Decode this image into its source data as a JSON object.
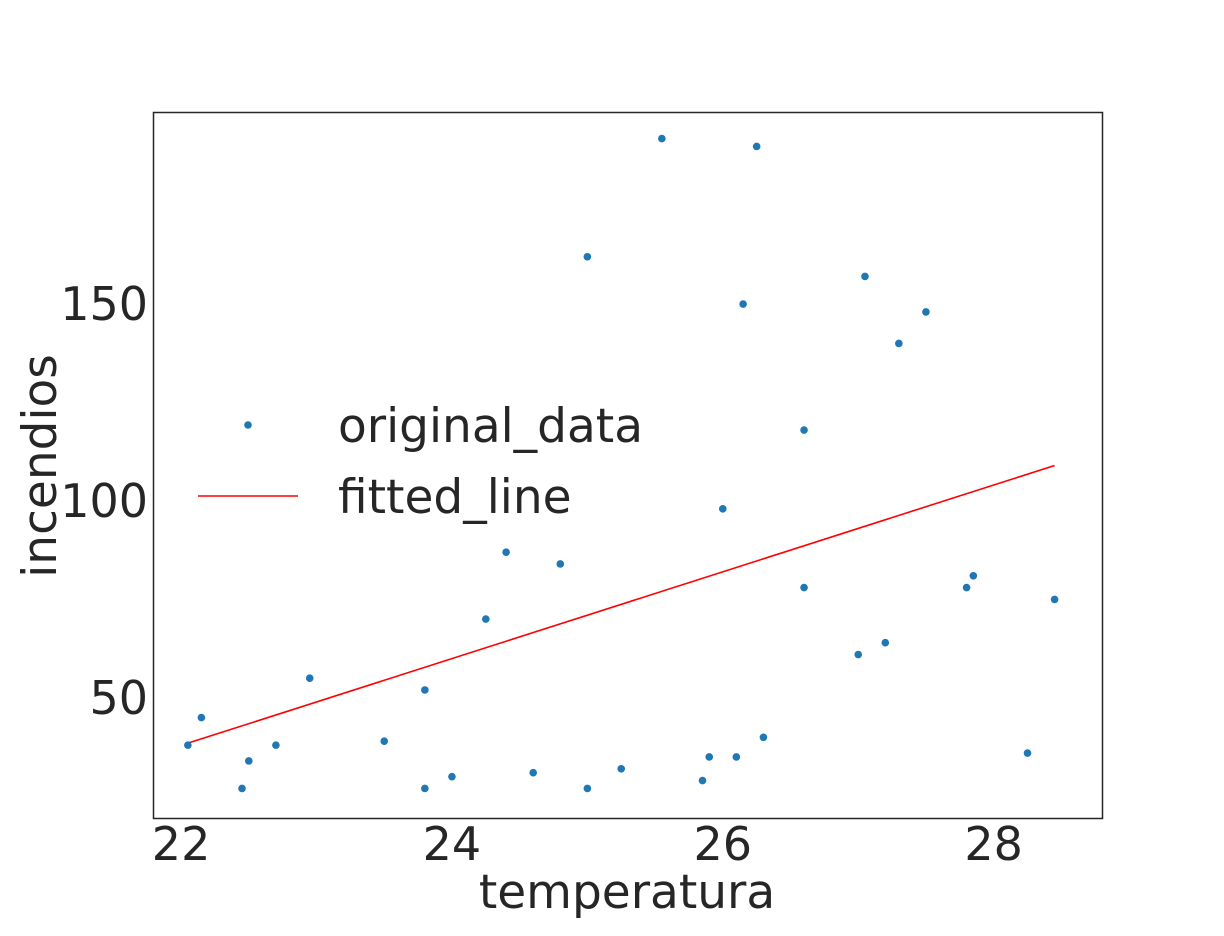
{
  "chart_data": {
    "type": "scatter",
    "title": "",
    "xlabel": "temperatura",
    "ylabel": "incendios",
    "xlim": [
      21.8,
      28.8
    ],
    "ylim": [
      19.5,
      198.5
    ],
    "xticks": [
      22,
      24,
      26,
      28
    ],
    "yticks": [
      50,
      100,
      150
    ],
    "grid": false,
    "legend_position": "center-left",
    "colors": {
      "points": "#1f77b4",
      "line": "#ff0000",
      "frame": "#262626"
    },
    "series": [
      {
        "name": "original_data",
        "kind": "scatter",
        "x": [
          22.05,
          22.15,
          22.45,
          22.5,
          22.7,
          22.95,
          23.5,
          23.8,
          23.8,
          24.0,
          24.25,
          24.4,
          24.6,
          24.8,
          25.0,
          25.0,
          25.25,
          25.55,
          25.85,
          25.9,
          26.0,
          26.1,
          26.15,
          26.25,
          26.3,
          26.6,
          26.6,
          27.0,
          27.05,
          27.2,
          27.3,
          27.5,
          27.8,
          27.85,
          28.25,
          28.45
        ],
        "y": [
          38,
          45,
          27,
          34,
          38,
          55,
          39,
          52,
          27,
          30,
          70,
          87,
          31,
          84,
          162,
          27,
          32,
          192,
          29,
          35,
          98,
          35,
          150,
          190,
          40,
          118,
          78,
          61,
          157,
          64,
          140,
          148,
          78,
          81,
          36,
          75
        ]
      },
      {
        "name": "fitted_line",
        "kind": "line",
        "x": [
          22.05,
          28.45
        ],
        "y": [
          38.5,
          109
        ]
      }
    ]
  }
}
